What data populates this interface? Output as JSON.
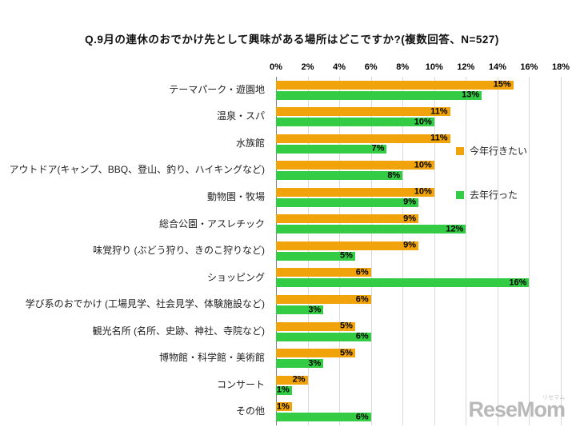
{
  "chart_data": {
    "type": "bar",
    "orientation": "horizontal",
    "title": "Q.9月の連休のおでかけ先として興味がある場所はどこですか?(複数回答、N=527)",
    "categories": [
      "テーマパーク・遊園地",
      "温泉・スパ",
      "水族館",
      "アウトドア(キャンプ、BBQ、登山、釣り、ハイキングなど)",
      "動物園・牧場",
      "総合公園・アスレチック",
      "味覚狩り (ぶどう狩り、きのこ狩りなど)",
      "ショッピング",
      "学び系のおでかけ (工場見学、社会見学、体験施設など)",
      "観光名所 (名所、史跡、神社、寺院など)",
      "博物館・科学館・美術館",
      "コンサート",
      "その他"
    ],
    "series": [
      {
        "name": "今年行きたい",
        "color": "#F0A30A",
        "values": [
          15,
          11,
          11,
          10,
          10,
          9,
          9,
          6,
          6,
          5,
          5,
          2,
          1
        ]
      },
      {
        "name": "去年行った",
        "color": "#33CC44",
        "values": [
          13,
          10,
          7,
          8,
          9,
          12,
          5,
          16,
          3,
          6,
          3,
          1,
          6
        ]
      }
    ],
    "x_axis": {
      "min": 0,
      "max": 18,
      "unit": "%",
      "ticks": [
        "0%",
        "2%",
        "4%",
        "6%",
        "8%",
        "10%",
        "12%",
        "14%",
        "16%",
        "18%"
      ]
    },
    "grid": true,
    "legend_position": "inside-right",
    "value_label_suffix": "%"
  },
  "logo": {
    "text": "ReseMom",
    "sub": "リセマム"
  }
}
